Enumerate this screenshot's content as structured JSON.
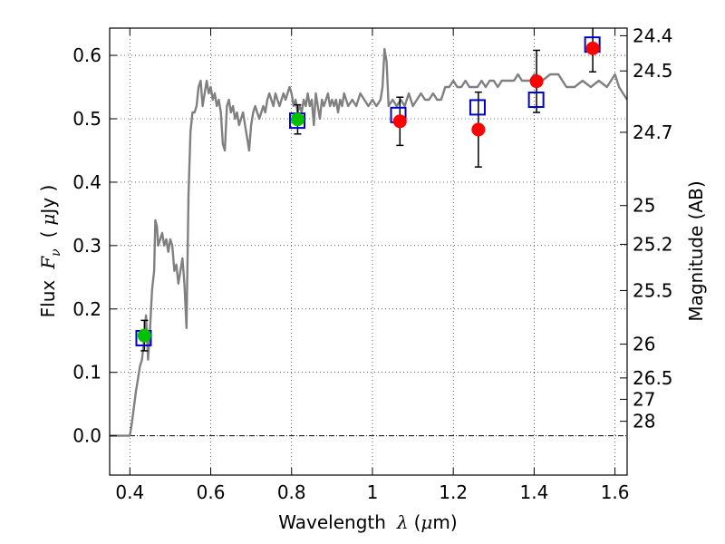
{
  "chart_data": {
    "type": "line",
    "xlabel": {
      "prefix": "Wavelength",
      "symbol": "λ",
      "unit_open": "(",
      "unit_mu": "μ",
      "unit_rest": "m)"
    },
    "ylabel": {
      "prefix": "Flux",
      "symbol": "F",
      "subscript": "ν",
      "unit_open": "(",
      "unit_mu": "μ",
      "unit_rest": "Jy )"
    },
    "y2label": "Magnitude (AB)",
    "xlim": [
      0.35,
      1.63
    ],
    "ylim": [
      -0.062,
      0.643
    ],
    "grid": true,
    "x_ticks": [
      {
        "v": 0.4,
        "label": "0.4"
      },
      {
        "v": 0.6,
        "label": "0.6"
      },
      {
        "v": 0.8,
        "label": "0.8"
      },
      {
        "v": 1.0,
        "label": "1"
      },
      {
        "v": 1.2,
        "label": "1.2"
      },
      {
        "v": 1.4,
        "label": "1.4"
      },
      {
        "v": 1.6,
        "label": "1.6"
      }
    ],
    "y_ticks": [
      {
        "v": 0.0,
        "label": "0.0"
      },
      {
        "v": 0.1,
        "label": "0.1"
      },
      {
        "v": 0.2,
        "label": "0.2"
      },
      {
        "v": 0.3,
        "label": "0.3"
      },
      {
        "v": 0.4,
        "label": "0.4"
      },
      {
        "v": 0.5,
        "label": "0.5"
      },
      {
        "v": 0.6,
        "label": "0.6"
      }
    ],
    "y2_ticks": [
      {
        "mag": 24.4,
        "label": "24.4"
      },
      {
        "mag": 24.5,
        "label": "24.5"
      },
      {
        "mag": 24.7,
        "label": "24.7"
      },
      {
        "mag": 25.0,
        "label": "25"
      },
      {
        "mag": 25.2,
        "label": "25.2"
      },
      {
        "mag": 25.5,
        "label": "25.5"
      },
      {
        "mag": 26.0,
        "label": "26"
      },
      {
        "mag": 26.5,
        "label": "26.5"
      },
      {
        "mag": 27.0,
        "label": "27"
      },
      {
        "mag": 28.0,
        "label": "28"
      }
    ],
    "series": [
      {
        "kind": "model_spectrum",
        "color": "#808080",
        "points": [
          [
            0.35,
            0.0
          ],
          [
            0.4,
            0.0
          ],
          [
            0.405,
            0.02
          ],
          [
            0.415,
            0.07
          ],
          [
            0.425,
            0.11
          ],
          [
            0.43,
            0.12
          ],
          [
            0.435,
            0.15
          ],
          [
            0.44,
            0.19
          ],
          [
            0.445,
            0.12
          ],
          [
            0.45,
            0.17
          ],
          [
            0.455,
            0.23
          ],
          [
            0.46,
            0.26
          ],
          [
            0.463,
            0.34
          ],
          [
            0.467,
            0.33
          ],
          [
            0.47,
            0.3
          ],
          [
            0.475,
            0.31
          ],
          [
            0.48,
            0.32
          ],
          [
            0.485,
            0.3
          ],
          [
            0.49,
            0.31
          ],
          [
            0.495,
            0.29
          ],
          [
            0.5,
            0.31
          ],
          [
            0.505,
            0.3
          ],
          [
            0.51,
            0.26
          ],
          [
            0.515,
            0.27
          ],
          [
            0.52,
            0.24
          ],
          [
            0.525,
            0.26
          ],
          [
            0.53,
            0.28
          ],
          [
            0.535,
            0.24
          ],
          [
            0.54,
            0.17
          ],
          [
            0.545,
            0.38
          ],
          [
            0.55,
            0.48
          ],
          [
            0.555,
            0.51
          ],
          [
            0.56,
            0.51
          ],
          [
            0.565,
            0.52
          ],
          [
            0.57,
            0.55
          ],
          [
            0.575,
            0.56
          ],
          [
            0.58,
            0.52
          ],
          [
            0.585,
            0.54
          ],
          [
            0.59,
            0.56
          ],
          [
            0.595,
            0.54
          ],
          [
            0.6,
            0.55
          ],
          [
            0.605,
            0.53
          ],
          [
            0.61,
            0.54
          ],
          [
            0.615,
            0.52
          ],
          [
            0.62,
            0.53
          ],
          [
            0.625,
            0.51
          ],
          [
            0.63,
            0.46
          ],
          [
            0.635,
            0.45
          ],
          [
            0.64,
            0.52
          ],
          [
            0.645,
            0.53
          ],
          [
            0.65,
            0.51
          ],
          [
            0.655,
            0.52
          ],
          [
            0.66,
            0.5
          ],
          [
            0.665,
            0.51
          ],
          [
            0.67,
            0.49
          ],
          [
            0.675,
            0.5
          ],
          [
            0.68,
            0.51
          ],
          [
            0.685,
            0.49
          ],
          [
            0.69,
            0.47
          ],
          [
            0.695,
            0.45
          ],
          [
            0.7,
            0.49
          ],
          [
            0.705,
            0.51
          ],
          [
            0.71,
            0.52
          ],
          [
            0.715,
            0.51
          ],
          [
            0.72,
            0.5
          ],
          [
            0.725,
            0.51
          ],
          [
            0.73,
            0.52
          ],
          [
            0.735,
            0.51
          ],
          [
            0.74,
            0.53
          ],
          [
            0.745,
            0.54
          ],
          [
            0.75,
            0.53
          ],
          [
            0.755,
            0.52
          ],
          [
            0.76,
            0.54
          ],
          [
            0.765,
            0.53
          ],
          [
            0.77,
            0.52
          ],
          [
            0.775,
            0.53
          ],
          [
            0.78,
            0.54
          ],
          [
            0.785,
            0.53
          ],
          [
            0.79,
            0.54
          ],
          [
            0.795,
            0.55
          ],
          [
            0.8,
            0.54
          ],
          [
            0.805,
            0.52
          ],
          [
            0.81,
            0.53
          ],
          [
            0.815,
            0.51
          ],
          [
            0.82,
            0.52
          ],
          [
            0.825,
            0.51
          ],
          [
            0.83,
            0.53
          ],
          [
            0.835,
            0.52
          ],
          [
            0.84,
            0.54
          ],
          [
            0.845,
            0.52
          ],
          [
            0.85,
            0.53
          ],
          [
            0.855,
            0.49
          ],
          [
            0.86,
            0.54
          ],
          [
            0.865,
            0.52
          ],
          [
            0.87,
            0.5
          ],
          [
            0.875,
            0.53
          ],
          [
            0.88,
            0.52
          ],
          [
            0.885,
            0.53
          ],
          [
            0.89,
            0.54
          ],
          [
            0.895,
            0.52
          ],
          [
            0.9,
            0.53
          ],
          [
            0.905,
            0.52
          ],
          [
            0.91,
            0.53
          ],
          [
            0.915,
            0.51
          ],
          [
            0.92,
            0.53
          ],
          [
            0.925,
            0.52
          ],
          [
            0.93,
            0.54
          ],
          [
            0.935,
            0.53
          ],
          [
            0.94,
            0.52
          ],
          [
            0.95,
            0.53
          ],
          [
            0.96,
            0.52
          ],
          [
            0.97,
            0.54
          ],
          [
            0.98,
            0.53
          ],
          [
            0.99,
            0.52
          ],
          [
            1.0,
            0.53
          ],
          [
            1.01,
            0.52
          ],
          [
            1.02,
            0.53
          ],
          [
            1.025,
            0.55
          ],
          [
            1.03,
            0.61
          ],
          [
            1.035,
            0.59
          ],
          [
            1.04,
            0.52
          ],
          [
            1.05,
            0.53
          ],
          [
            1.06,
            0.52
          ],
          [
            1.07,
            0.53
          ],
          [
            1.08,
            0.52
          ],
          [
            1.09,
            0.54
          ],
          [
            1.1,
            0.52
          ],
          [
            1.11,
            0.53
          ],
          [
            1.12,
            0.54
          ],
          [
            1.13,
            0.53
          ],
          [
            1.14,
            0.53
          ],
          [
            1.15,
            0.54
          ],
          [
            1.16,
            0.53
          ],
          [
            1.17,
            0.53
          ],
          [
            1.18,
            0.55
          ],
          [
            1.19,
            0.55
          ],
          [
            1.2,
            0.56
          ],
          [
            1.21,
            0.55
          ],
          [
            1.22,
            0.55
          ],
          [
            1.23,
            0.56
          ],
          [
            1.24,
            0.55
          ],
          [
            1.25,
            0.55
          ],
          [
            1.26,
            0.55
          ],
          [
            1.27,
            0.56
          ],
          [
            1.28,
            0.55
          ],
          [
            1.29,
            0.56
          ],
          [
            1.3,
            0.56
          ],
          [
            1.31,
            0.55
          ],
          [
            1.32,
            0.56
          ],
          [
            1.33,
            0.56
          ],
          [
            1.34,
            0.56
          ],
          [
            1.35,
            0.56
          ],
          [
            1.36,
            0.57
          ],
          [
            1.37,
            0.56
          ],
          [
            1.38,
            0.56
          ],
          [
            1.39,
            0.56
          ],
          [
            1.4,
            0.57
          ],
          [
            1.42,
            0.56
          ],
          [
            1.44,
            0.57
          ],
          [
            1.45,
            0.57
          ],
          [
            1.46,
            0.57
          ],
          [
            1.47,
            0.56
          ],
          [
            1.48,
            0.55
          ],
          [
            1.5,
            0.55
          ],
          [
            1.52,
            0.56
          ],
          [
            1.54,
            0.55
          ],
          [
            1.56,
            0.56
          ],
          [
            1.58,
            0.55
          ],
          [
            1.59,
            0.56
          ],
          [
            1.6,
            0.57
          ],
          [
            1.61,
            0.55
          ],
          [
            1.62,
            0.54
          ],
          [
            1.63,
            0.53
          ]
        ]
      },
      {
        "kind": "model_bandpass_flux",
        "marker": "open-square",
        "color": "#0000cc",
        "points": [
          [
            0.434,
            0.154
          ],
          [
            0.814,
            0.497
          ],
          [
            1.064,
            0.506
          ],
          [
            1.26,
            0.518
          ],
          [
            1.405,
            0.53
          ],
          [
            1.544,
            0.617
          ]
        ]
      },
      {
        "kind": "observed_flux",
        "marker": "filled-circle",
        "color": "#ff0000",
        "points": [
          {
            "x": 1.068,
            "y": 0.496,
            "err": 0.038
          },
          {
            "x": 1.262,
            "y": 0.483,
            "err": 0.059
          },
          {
            "x": 1.406,
            "y": 0.559,
            "err": 0.049
          },
          {
            "x": 1.545,
            "y": 0.611,
            "err": 0.037
          }
        ]
      },
      {
        "kind": "observed_flux",
        "marker": "filled-circle",
        "color": "#00c000",
        "points": [
          {
            "x": 0.436,
            "y": 0.158,
            "err": 0.024
          },
          {
            "x": 0.815,
            "y": 0.499,
            "err": 0.023
          }
        ]
      }
    ]
  }
}
